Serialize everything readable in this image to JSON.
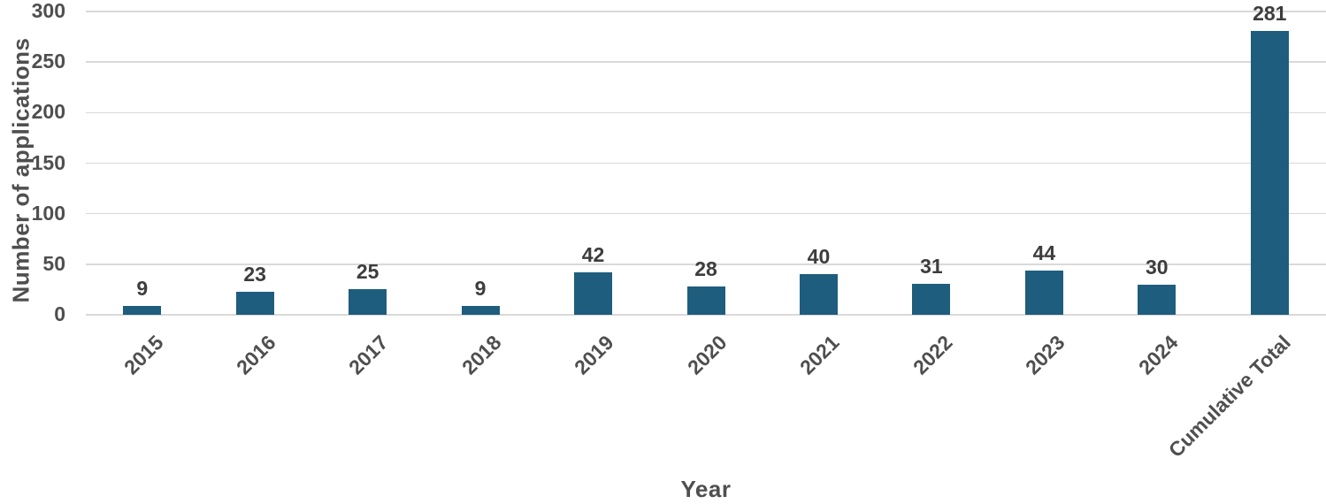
{
  "chart_data": {
    "type": "bar",
    "title": "",
    "xlabel": "Year",
    "ylabel": "Number of applications",
    "categories": [
      "2015",
      "2016",
      "2017",
      "2018",
      "2019",
      "2020",
      "2021",
      "2022",
      "2023",
      "2024",
      "Cumulative Total"
    ],
    "values": [
      9,
      23,
      25,
      9,
      42,
      28,
      40,
      31,
      44,
      30,
      281
    ],
    "data_labels": [
      "9",
      "23",
      "25",
      "9",
      "42",
      "28",
      "40",
      "31",
      "44",
      "30",
      "281"
    ],
    "y_ticks": [
      0,
      50,
      100,
      150,
      200,
      250,
      300
    ],
    "ylim": [
      0,
      300
    ],
    "grid": "horizontal",
    "legend": "none",
    "x_tick_rotation_deg": 45,
    "bar_color": "#1e5d7e",
    "data_label_color": "#3d3d3d",
    "axis_text_color": "#4f4f4f",
    "gridline_color": "#d9d9d9"
  }
}
